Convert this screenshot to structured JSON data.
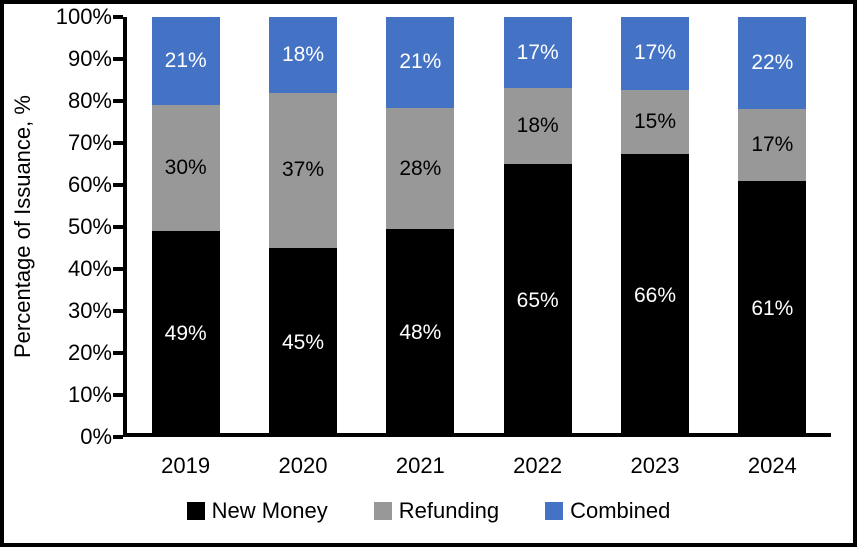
{
  "chart_data": {
    "type": "bar",
    "variant": "stacked-100",
    "title": "",
    "xlabel": "",
    "ylabel": "Percentage of Issuance, %",
    "ylim": [
      0,
      100
    ],
    "ytick_labels": [
      "0%",
      "10%",
      "20%",
      "30%",
      "40%",
      "50%",
      "60%",
      "70%",
      "80%",
      "90%",
      "100%"
    ],
    "grid": false,
    "legend_position": "bottom",
    "categories": [
      "2019",
      "2020",
      "2021",
      "2022",
      "2023",
      "2024"
    ],
    "series": [
      {
        "name": "New Money",
        "color": "#000000",
        "label_color": "#ffffff",
        "values": [
          49,
          45,
          48,
          65,
          66,
          61
        ],
        "labels": [
          "49%",
          "45%",
          "48%",
          "65%",
          "66%",
          "61%"
        ]
      },
      {
        "name": "Refunding",
        "color": "#989898",
        "label_color": "#000000",
        "values": [
          30,
          37,
          28,
          18,
          15,
          17
        ],
        "labels": [
          "30%",
          "37%",
          "28%",
          "18%",
          "15%",
          "17%"
        ]
      },
      {
        "name": "Combined",
        "color": "#4472C4",
        "label_color": "#ffffff",
        "values": [
          21,
          18,
          21,
          17,
          17,
          22
        ],
        "labels": [
          "21%",
          "18%",
          "21%",
          "17%",
          "17%",
          "22%"
        ]
      }
    ]
  },
  "colors": {
    "axis": "#000000",
    "background": "#ffffff",
    "frame_border": "#000000"
  }
}
